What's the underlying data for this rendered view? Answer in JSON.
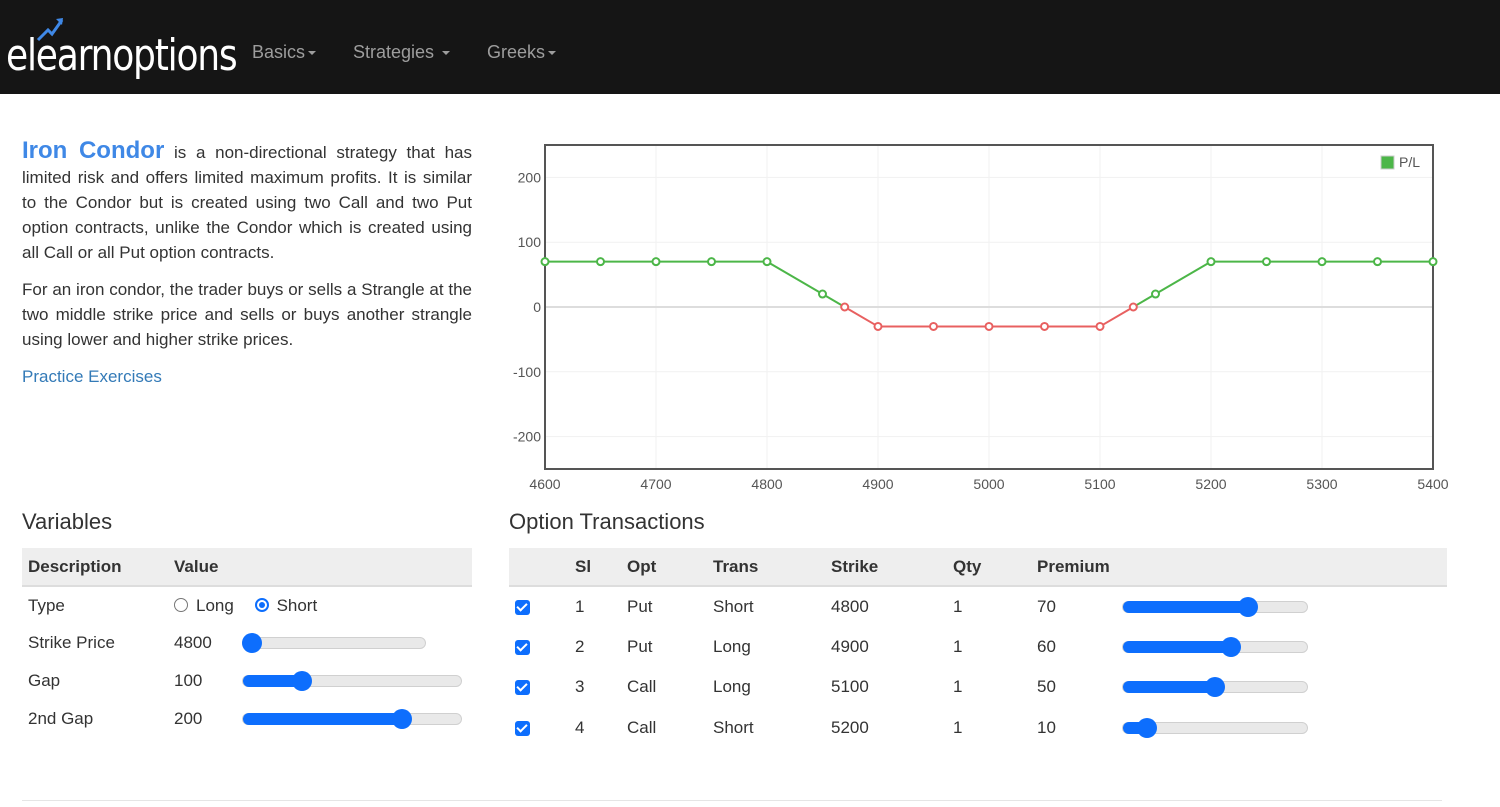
{
  "brand": {
    "logo_text": "elearnoptions"
  },
  "nav": {
    "items": [
      {
        "label": "Basics"
      },
      {
        "label": "Strategies"
      },
      {
        "label": "Greeks"
      }
    ]
  },
  "intro": {
    "title": "Iron Condor",
    "para1": " is a non-directional strategy that has limited risk and offers limited maximum profits. It is similar to the Condor but is created using two Call and two Put option contracts, unlike the Condor which is created using all Call or all Put option contracts.",
    "para2": "For an iron condor, the trader buys or sells a Strangle at the two middle strike price and sells or buys another strangle using lower and higher strike prices.",
    "practice_link": "Practice Exercises"
  },
  "chart_data": {
    "type": "line",
    "x": [
      4600,
      4650,
      4700,
      4750,
      4800,
      4850,
      4870,
      4900,
      4950,
      5000,
      5050,
      5100,
      5130,
      5150,
      5200,
      5250,
      5300,
      5350,
      5400
    ],
    "series": [
      {
        "name": "P/L",
        "values": [
          70,
          70,
          70,
          70,
          70,
          20,
          0,
          -30,
          -30,
          -30,
          -30,
          -30,
          0,
          20,
          70,
          70,
          70,
          70,
          70
        ]
      }
    ],
    "xlim": [
      4600,
      5400
    ],
    "ylim": [
      -250,
      250
    ],
    "xticks": [
      4600,
      4700,
      4800,
      4900,
      5000,
      5100,
      5200,
      5300,
      5400
    ],
    "yticks": [
      -200,
      -100,
      0,
      100,
      200
    ],
    "legend": "top-right",
    "colors": {
      "positive": "#4cb648",
      "negative": "#e86060"
    },
    "grid": true
  },
  "variables": {
    "title": "Variables",
    "headers": {
      "description": "Description",
      "value": "Value"
    },
    "type_label": "Type",
    "type_options": {
      "long": "Long",
      "short": "Short"
    },
    "type_selected": "short",
    "rows": [
      {
        "label": "Strike Price",
        "value": "4800",
        "slider_fraction": 0.05
      },
      {
        "label": "Gap",
        "value": "100",
        "slider_fraction": 0.27
      },
      {
        "label": "2nd Gap",
        "value": "200",
        "slider_fraction": 0.73
      }
    ]
  },
  "transactions": {
    "title": "Option Transactions",
    "headers": {
      "sl": "Sl",
      "opt": "Opt",
      "trans": "Trans",
      "strike": "Strike",
      "qty": "Qty",
      "premium": "Premium"
    },
    "rows": [
      {
        "sl": "1",
        "opt": "Put",
        "trans": "Short",
        "strike": "4800",
        "qty": "1",
        "premium": "70",
        "slider_fraction": 0.68
      },
      {
        "sl": "2",
        "opt": "Put",
        "trans": "Long",
        "strike": "4900",
        "qty": "1",
        "premium": "60",
        "slider_fraction": 0.59
      },
      {
        "sl": "3",
        "opt": "Call",
        "trans": "Long",
        "strike": "5100",
        "qty": "1",
        "premium": "50",
        "slider_fraction": 0.5
      },
      {
        "sl": "4",
        "opt": "Call",
        "trans": "Short",
        "strike": "5200",
        "qty": "1",
        "premium": "10",
        "slider_fraction": 0.13
      }
    ]
  }
}
